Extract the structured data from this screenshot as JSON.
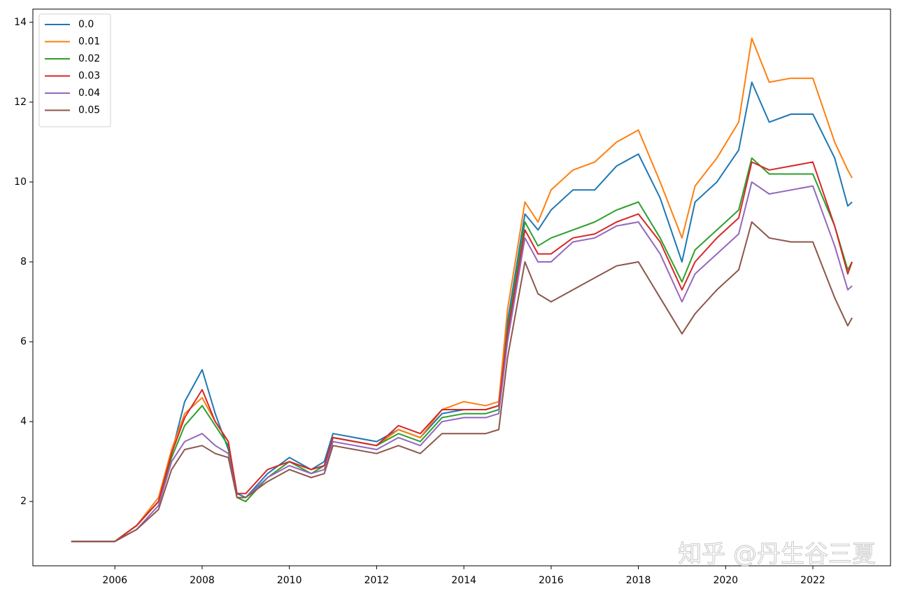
{
  "chart_data": {
    "type": "line",
    "x": [
      2005,
      2006,
      2006.5,
      2007,
      2007.3,
      2007.6,
      2008,
      2008.3,
      2008.6,
      2008.8,
      2009,
      2009.5,
      2010,
      2010.5,
      2010.8,
      2011,
      2011.5,
      2012,
      2012.5,
      2013,
      2013.5,
      2014,
      2014.5,
      2014.8,
      2015,
      2015.4,
      2015.7,
      2016,
      2016.5,
      2017,
      2017.5,
      2018,
      2018.5,
      2019,
      2019.3,
      2019.8,
      2020.3,
      2020.6,
      2021,
      2021.5,
      2022,
      2022.5,
      2022.8,
      2022.9
    ],
    "series": [
      {
        "name": "0.0",
        "color": "#1f77b4",
        "values": [
          1,
          1,
          1.4,
          2.0,
          3.2,
          4.5,
          5.3,
          4.2,
          3.3,
          2.2,
          2.1,
          2.7,
          3.1,
          2.8,
          3.0,
          3.7,
          3.6,
          3.5,
          3.8,
          3.6,
          4.2,
          4.3,
          4.3,
          4.4,
          6.5,
          9.2,
          8.8,
          9.3,
          9.8,
          9.8,
          10.4,
          10.7,
          9.6,
          8.0,
          9.5,
          10.0,
          10.8,
          12.5,
          11.5,
          11.7,
          11.7,
          10.6,
          9.4,
          9.5
        ]
      },
      {
        "name": "0.01",
        "color": "#ff7f0e",
        "values": [
          1,
          1,
          1.4,
          2.1,
          3.3,
          4.2,
          4.6,
          4.0,
          3.5,
          2.1,
          2.0,
          2.6,
          3.0,
          2.8,
          2.9,
          3.6,
          3.5,
          3.4,
          3.8,
          3.6,
          4.3,
          4.5,
          4.4,
          4.5,
          6.8,
          9.5,
          9.0,
          9.8,
          10.3,
          10.5,
          11.0,
          11.3,
          10.0,
          8.6,
          9.9,
          10.6,
          11.5,
          13.6,
          12.5,
          12.6,
          12.6,
          11.0,
          10.3,
          10.1
        ]
      },
      {
        "name": "0.02",
        "color": "#2ca02c",
        "values": [
          1,
          1,
          1.4,
          2.0,
          3.1,
          3.9,
          4.4,
          3.9,
          3.4,
          2.1,
          2.0,
          2.6,
          3.0,
          2.7,
          2.9,
          3.6,
          3.5,
          3.4,
          3.7,
          3.5,
          4.1,
          4.2,
          4.2,
          4.3,
          6.3,
          9.0,
          8.4,
          8.6,
          8.8,
          9.0,
          9.3,
          9.5,
          8.6,
          7.5,
          8.3,
          8.8,
          9.3,
          10.6,
          10.2,
          10.2,
          10.2,
          8.9,
          7.8,
          8.0
        ]
      },
      {
        "name": "0.03",
        "color": "#d62728",
        "values": [
          1,
          1,
          1.4,
          2.0,
          3.2,
          4.1,
          4.8,
          4.0,
          3.5,
          2.2,
          2.2,
          2.8,
          3.0,
          2.8,
          2.9,
          3.6,
          3.5,
          3.4,
          3.9,
          3.7,
          4.3,
          4.3,
          4.3,
          4.4,
          6.2,
          8.8,
          8.2,
          8.2,
          8.6,
          8.7,
          9.0,
          9.2,
          8.5,
          7.3,
          8.0,
          8.6,
          9.1,
          10.5,
          10.3,
          10.4,
          10.5,
          8.9,
          7.7,
          8.0
        ]
      },
      {
        "name": "0.04",
        "color": "#9467bd",
        "values": [
          1,
          1,
          1.3,
          1.9,
          3.0,
          3.5,
          3.7,
          3.4,
          3.2,
          2.1,
          2.1,
          2.6,
          2.9,
          2.7,
          2.8,
          3.5,
          3.4,
          3.3,
          3.6,
          3.4,
          4.0,
          4.1,
          4.1,
          4.2,
          6.0,
          8.6,
          8.0,
          8.0,
          8.5,
          8.6,
          8.9,
          9.0,
          8.2,
          7.0,
          7.7,
          8.2,
          8.7,
          10.0,
          9.7,
          9.8,
          9.9,
          8.4,
          7.3,
          7.4
        ]
      },
      {
        "name": "0.05",
        "color": "#8c564b",
        "values": [
          1,
          1,
          1.3,
          1.8,
          2.8,
          3.3,
          3.4,
          3.2,
          3.1,
          2.1,
          2.1,
          2.5,
          2.8,
          2.6,
          2.7,
          3.4,
          3.3,
          3.2,
          3.4,
          3.2,
          3.7,
          3.7,
          3.7,
          3.8,
          5.6,
          8.0,
          7.2,
          7.0,
          7.3,
          7.6,
          7.9,
          8.0,
          7.1,
          6.2,
          6.7,
          7.3,
          7.8,
          9.0,
          8.6,
          8.5,
          8.5,
          7.1,
          6.4,
          6.6
        ]
      }
    ],
    "xlim": [
      2004.12,
      2023.78
    ],
    "xticks": [
      2006,
      2008,
      2010,
      2012,
      2014,
      2016,
      2018,
      2020,
      2022
    ],
    "ylim": [
      0.39,
      14.33
    ],
    "yticks": [
      2,
      4,
      6,
      8,
      10,
      12,
      14
    ],
    "legend": "upper left",
    "grid": false,
    "annotation": "知乎 @丹生谷三夏"
  }
}
